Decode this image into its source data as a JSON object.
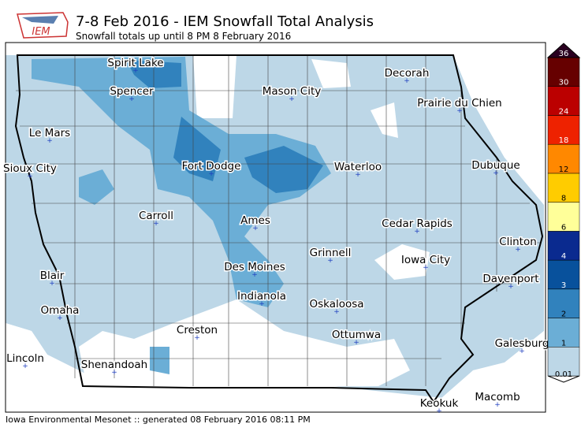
{
  "header": {
    "title": "7-8 Feb 2016 - IEM Snowfall Total Analysis",
    "subtitle": "Snowfall totals up until 8 PM 8 February 2016",
    "logo": "IEM"
  },
  "cities": [
    "Spirit Lake",
    "Decorah",
    "Spencer",
    "Mason City",
    "Prairie du Chien",
    "Le Mars",
    "Fort Dodge",
    "Waterloo",
    "Dubuque",
    "Sioux City",
    "Carroll",
    "Ames",
    "Cedar Rapids",
    "Clinton",
    "Grinnell",
    "Iowa City",
    "Des Moines",
    "Blair",
    "Davenport",
    "Indianola",
    "Oskaloosa",
    "Omaha",
    "Creston",
    "Ottumwa",
    "Galesburg",
    "Lincoln",
    "Shenandoah",
    "Macomb",
    "Keokuk"
  ],
  "legend": {
    "levels": [
      0.01,
      1,
      2,
      3,
      4,
      6,
      8,
      12,
      18,
      24,
      30,
      36
    ],
    "colors": [
      "#bdd7e7",
      "#6baed6",
      "#3182bd",
      "#08519c",
      "#0a2a8f",
      "#ffff99",
      "#ffcc00",
      "#ff8800",
      "#ee2200",
      "#bb0000",
      "#660000"
    ]
  },
  "footer": "Iowa Environmental Mesonet :: generated 08 February 2016 08:11 PM"
}
